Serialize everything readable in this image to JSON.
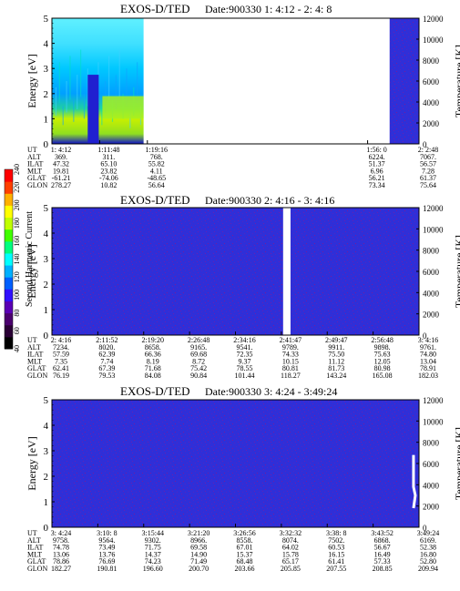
{
  "chart_data": [
    {
      "type": "heatmap",
      "title_left": "EXOS-D/TED",
      "title_right": "Date:900330  1: 4:12 - 2: 4: 8",
      "ylabel": "Energy [eV]",
      "y2label": "Temperature [K]",
      "ylim": [
        0,
        5
      ],
      "y_ticks": [
        "0",
        "1",
        "2",
        "3",
        "4",
        "5"
      ],
      "y2lim": [
        0,
        12000
      ],
      "y2_ticks": [
        "0",
        "2000",
        "4000",
        "6000",
        "8000",
        "10000",
        "12000"
      ],
      "segments": [
        {
          "x_from": 0.0,
          "x_to": 0.25,
          "kind": "active"
        },
        {
          "x_from": 0.25,
          "x_to": 0.92,
          "kind": "nodata"
        },
        {
          "x_from": 0.92,
          "x_to": 1.0,
          "kind": "quiet"
        }
      ],
      "ephemeris_labels": [
        "UT",
        "ALT",
        "ILAT",
        "MLT",
        "GLAT",
        "GLON"
      ],
      "ephemeris": [
        {
          "x": 0.0,
          "values": [
            "1: 4:12",
            "369.",
            "47.32",
            "19.81",
            "-61.21",
            "278.27"
          ]
        },
        {
          "x": 0.13,
          "values": [
            "1:11:48",
            "311.",
            "65.10",
            "23.82",
            "-74.06",
            "10.82"
          ]
        },
        {
          "x": 0.26,
          "values": [
            "1:19:16",
            "768.",
            "55.82",
            "4.11",
            "-48.65",
            "56.64"
          ]
        },
        {
          "x": 0.86,
          "values": [
            "1:56: 0",
            "6224.",
            "51.37",
            "6.96",
            "56.21",
            "73.34"
          ]
        },
        {
          "x": 1.0,
          "values": [
            "2: 2:48",
            "7067.",
            "56.57",
            "7.28",
            "61.37",
            "75.64"
          ]
        }
      ]
    },
    {
      "type": "heatmap",
      "title_left": "EXOS-D/TED",
      "title_right": "Date:900330  2: 4:16 - 3: 4:16",
      "ylabel": "Energy [eV]",
      "y2label": "Temperature [K]",
      "ylim": [
        0,
        5
      ],
      "y_ticks": [
        "0",
        "1",
        "2",
        "3",
        "4",
        "5"
      ],
      "y2lim": [
        0,
        12000
      ],
      "y2_ticks": [
        "0",
        "2000",
        "4000",
        "6000",
        "8000",
        "10000",
        "12000"
      ],
      "segments": [
        {
          "x_from": 0.0,
          "x_to": 0.63,
          "kind": "quiet"
        },
        {
          "x_from": 0.63,
          "x_to": 0.65,
          "kind": "nodata"
        },
        {
          "x_from": 0.65,
          "x_to": 1.0,
          "kind": "quiet"
        }
      ],
      "ephemeris_labels": [
        "UT",
        "ALT",
        "ILAT",
        "MLT",
        "GLAT",
        "GLON"
      ],
      "ephemeris": [
        {
          "x": 0.0,
          "values": [
            "2: 4:16",
            "7234.",
            "57.59",
            "7.35",
            "62.41",
            "76.19"
          ]
        },
        {
          "x": 0.125,
          "values": [
            "2:11:52",
            "8020.",
            "62.39",
            "7.74",
            "67.39",
            "79.53"
          ]
        },
        {
          "x": 0.25,
          "values": [
            "2:19:20",
            "8658.",
            "66.36",
            "8.19",
            "71.68",
            "84.08"
          ]
        },
        {
          "x": 0.375,
          "values": [
            "2:26:48",
            "9165.",
            "69.68",
            "8.72",
            "75.42",
            "90.84"
          ]
        },
        {
          "x": 0.5,
          "values": [
            "2:34:16",
            "9541.",
            "72.35",
            "9.37",
            "78.55",
            "101.44"
          ]
        },
        {
          "x": 0.625,
          "values": [
            "2:41:47",
            "9789.",
            "74.33",
            "10.15",
            "80.81",
            "118.27"
          ]
        },
        {
          "x": 0.75,
          "values": [
            "2:49:47",
            "9911.",
            "75.50",
            "11.12",
            "81.73",
            "143.24"
          ]
        },
        {
          "x": 0.875,
          "values": [
            "2:56:48",
            "9898.",
            "75.63",
            "12.05",
            "80.98",
            "165.08"
          ]
        },
        {
          "x": 1.0,
          "values": [
            "3: 4:16",
            "9761.",
            "74.80",
            "13.04",
            "78.91",
            "182.03"
          ]
        }
      ]
    },
    {
      "type": "heatmap",
      "title_left": "EXOS-D/TED",
      "title_right": "Date:900330  3: 4:24 - 3:49:24",
      "ylabel": "Energy [eV]",
      "y2label": "Temperature [K]",
      "ylim": [
        0,
        5
      ],
      "y_ticks": [
        "0",
        "1",
        "2",
        "3",
        "4",
        "5"
      ],
      "y2lim": [
        0,
        12000
      ],
      "y2_ticks": [
        "0",
        "2000",
        "4000",
        "6000",
        "8000",
        "10000",
        "12000"
      ],
      "segments": [
        {
          "x_from": 0.0,
          "x_to": 1.0,
          "kind": "quiet"
        }
      ],
      "temperature_trace": [
        {
          "x": 0.985,
          "y": 6800
        },
        {
          "x": 0.985,
          "y": 3800
        },
        {
          "x": 0.99,
          "y": 3000
        },
        {
          "x": 0.985,
          "y": 1800
        }
      ],
      "ephemeris_labels": [
        "UT",
        "ALT",
        "ILAT",
        "MLT",
        "GLAT",
        "GLON"
      ],
      "ephemeris": [
        {
          "x": 0.0,
          "values": [
            "3: 4:24",
            "9758.",
            "74.78",
            "13.06",
            "78.86",
            "182.27"
          ]
        },
        {
          "x": 0.125,
          "values": [
            "3:10: 8",
            "9564.",
            "73.49",
            "13.76",
            "76.69",
            "190.81"
          ]
        },
        {
          "x": 0.25,
          "values": [
            "3:15:44",
            "9302.",
            "71.75",
            "14.37",
            "74.23",
            "196.60"
          ]
        },
        {
          "x": 0.375,
          "values": [
            "3:21:20",
            "8966.",
            "69.58",
            "14.90",
            "71.49",
            "200.70"
          ]
        },
        {
          "x": 0.5,
          "values": [
            "3:26:56",
            "8558.",
            "67.01",
            "15.37",
            "68.48",
            "203.66"
          ]
        },
        {
          "x": 0.625,
          "values": [
            "3:32:32",
            "8074.",
            "64.02",
            "15.78",
            "65.17",
            "205.85"
          ]
        },
        {
          "x": 0.75,
          "values": [
            "3:38: 8",
            "7502.",
            "60.53",
            "16.15",
            "61.41",
            "207.55"
          ]
        },
        {
          "x": 0.875,
          "values": [
            "3:43:52",
            "6868.",
            "56.67",
            "16.49",
            "57.33",
            "208.85"
          ]
        },
        {
          "x": 1.0,
          "values": [
            "3:49:24",
            "6169.",
            "52.38",
            "16.80",
            "52.80",
            "209.94"
          ]
        }
      ]
    }
  ],
  "colorbar": {
    "label": "Second Harmonic Current",
    "ticks": [
      "40",
      "60",
      "80",
      "100",
      "120",
      "140",
      "160",
      "180",
      "200",
      "220",
      "240"
    ],
    "colors": [
      "#000000",
      "#2a0035",
      "#4b006e",
      "#5a00b4",
      "#3010ff",
      "#0060ff",
      "#00b0ff",
      "#00ffff",
      "#00ff80",
      "#40ff00",
      "#c0ff00",
      "#ffff00",
      "#ffb000",
      "#ff4000",
      "#ff0000"
    ]
  },
  "colors": {
    "quiet_base": "#2f2fd8",
    "quiet_dot": "#6a1fb0",
    "nodata": "#ffffff",
    "trace": "#ffffff"
  }
}
